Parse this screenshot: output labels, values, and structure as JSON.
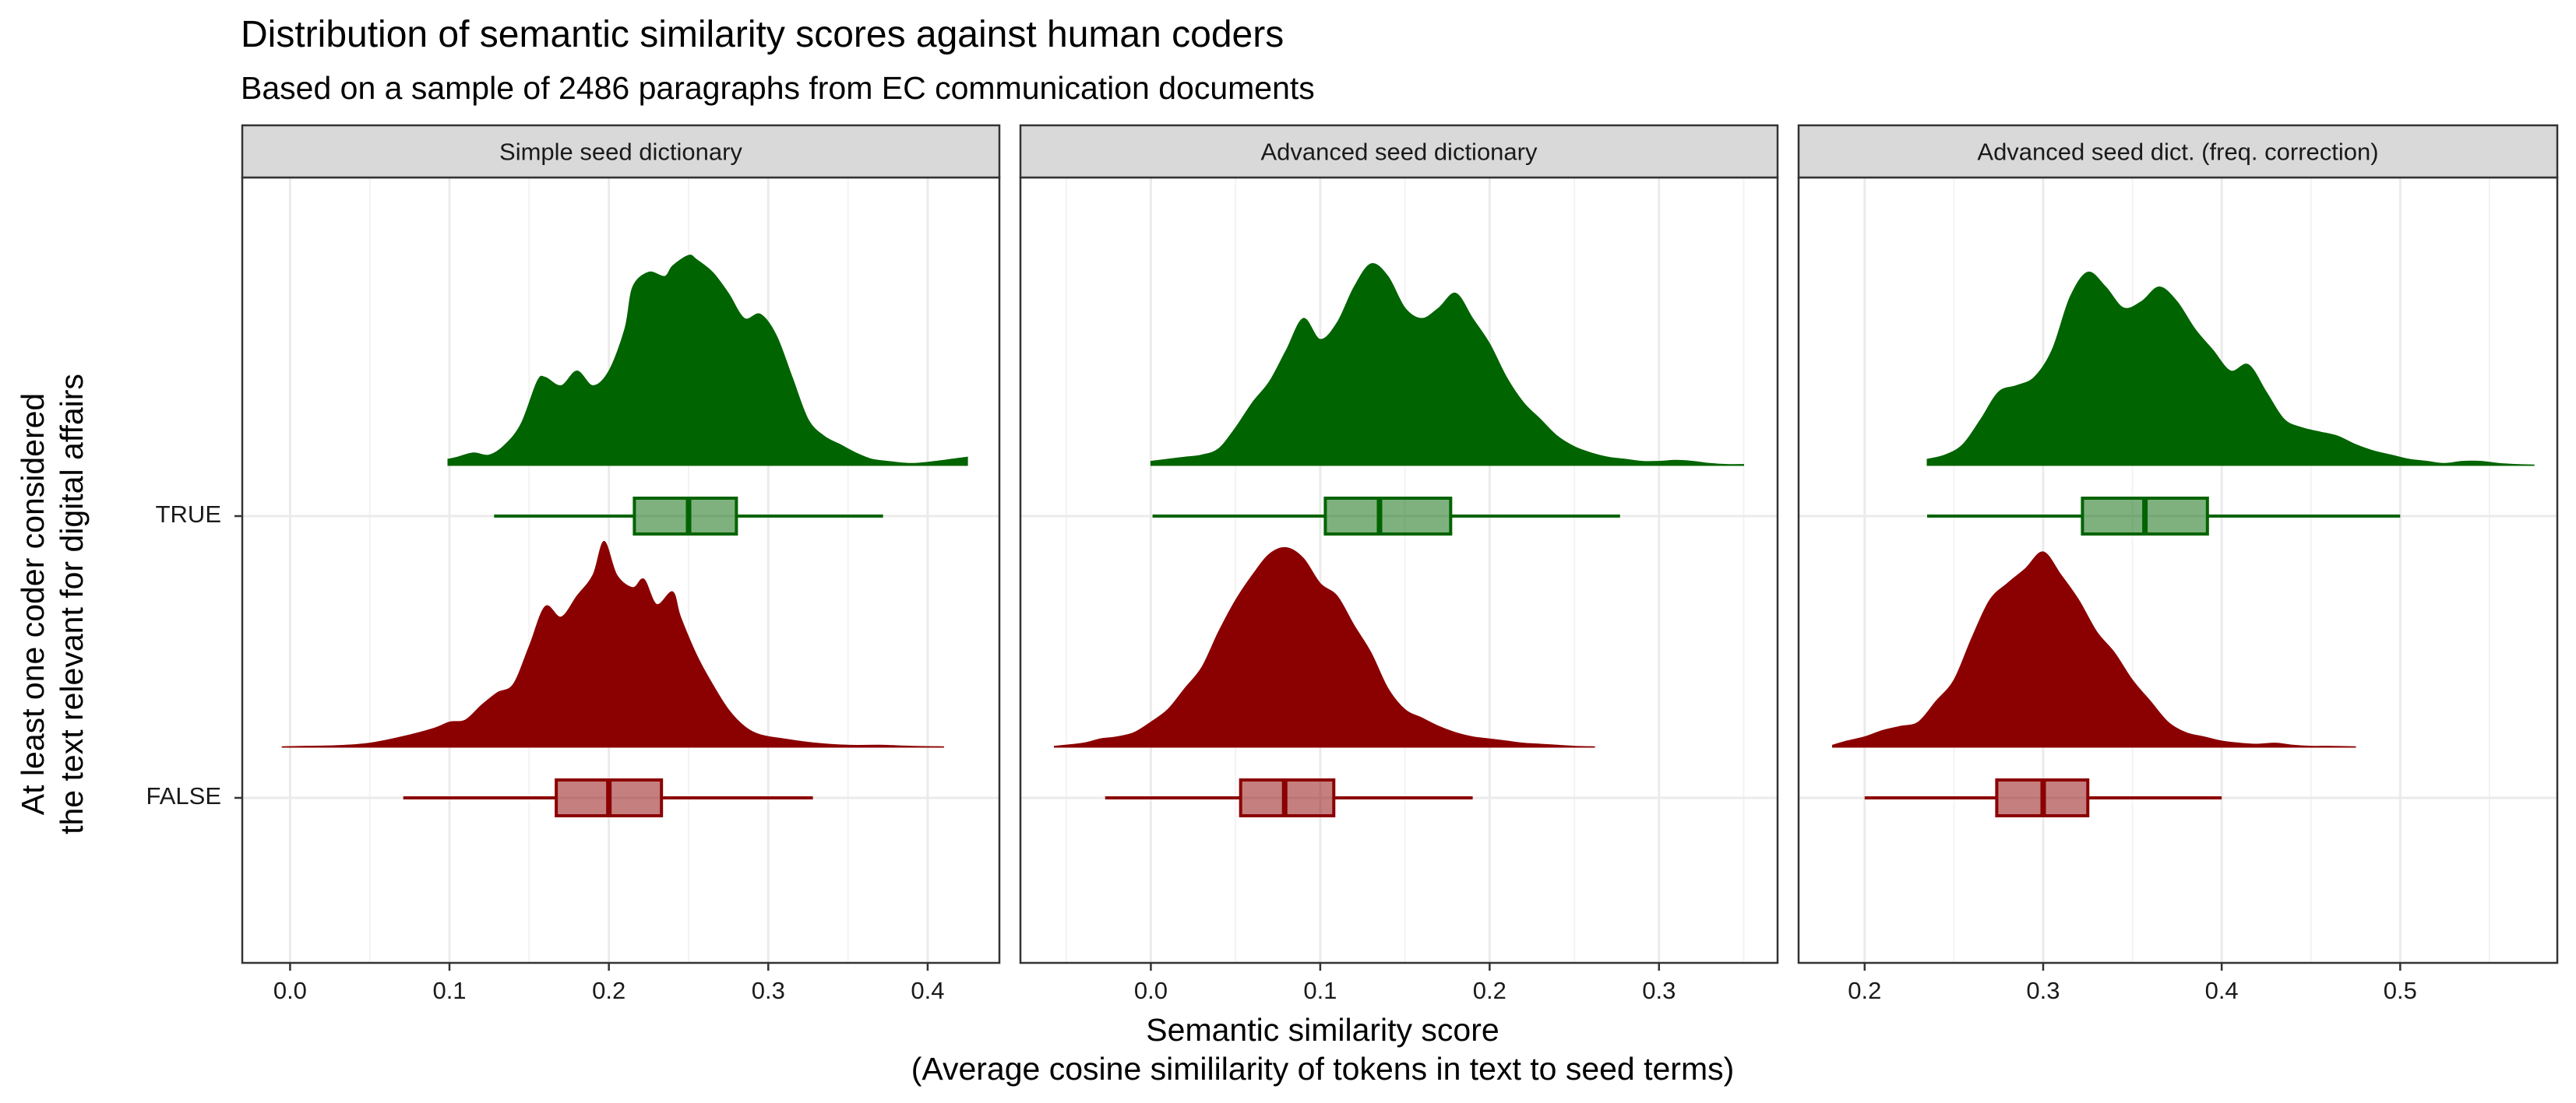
{
  "chart_data": {
    "type": "density-boxplot (raincloud)",
    "title": "Distribution of semantic similarity scores against human coders",
    "subtitle": "Based on a sample of 2486 paragraphs from EC communication documents",
    "xlabel": "Semantic similarity score",
    "xlabel_line2": "(Average cosine simililarity of tokens in text to seed terms)",
    "ylabel": "At least one coder considered",
    "ylabel_line2": "the text relevant for digital affairs",
    "categories": [
      "TRUE",
      "FALSE"
    ],
    "colors": {
      "TRUE": "#006400",
      "FALSE": "#8b0000"
    },
    "grid": true,
    "legend": "none",
    "panels": [
      {
        "label": "Simple seed dictionary",
        "xlim": [
          -0.03,
          0.445
        ],
        "xticks": [
          0.0,
          0.1,
          0.2,
          0.3,
          0.4
        ],
        "xtick_labels": [
          "0.0",
          "0.1",
          "0.2",
          "0.3",
          "0.4"
        ],
        "groups": [
          {
            "name": "TRUE",
            "box": {
              "min": 0.128,
              "q1": 0.216,
              "median": 0.25,
              "q3": 0.28,
              "max": 0.372
            },
            "density": [
              [
                0.099,
                0.03
              ],
              [
                0.105,
                0.04
              ],
              [
                0.115,
                0.06
              ],
              [
                0.125,
                0.05
              ],
              [
                0.135,
                0.1
              ],
              [
                0.145,
                0.2
              ],
              [
                0.155,
                0.4
              ],
              [
                0.16,
                0.42
              ],
              [
                0.17,
                0.38
              ],
              [
                0.18,
                0.45
              ],
              [
                0.19,
                0.38
              ],
              [
                0.2,
                0.45
              ],
              [
                0.21,
                0.65
              ],
              [
                0.215,
                0.85
              ],
              [
                0.225,
                0.92
              ],
              [
                0.235,
                0.9
              ],
              [
                0.24,
                0.95
              ],
              [
                0.25,
                1.0
              ],
              [
                0.255,
                0.98
              ],
              [
                0.265,
                0.92
              ],
              [
                0.275,
                0.82
              ],
              [
                0.285,
                0.7
              ],
              [
                0.295,
                0.72
              ],
              [
                0.305,
                0.62
              ],
              [
                0.315,
                0.42
              ],
              [
                0.325,
                0.22
              ],
              [
                0.335,
                0.14
              ],
              [
                0.345,
                0.1
              ],
              [
                0.355,
                0.06
              ],
              [
                0.365,
                0.03
              ],
              [
                0.375,
                0.02
              ],
              [
                0.39,
                0.01
              ],
              [
                0.405,
                0.02
              ],
              [
                0.415,
                0.03
              ],
              [
                0.425,
                0.04
              ]
            ]
          },
          {
            "name": "FALSE",
            "box": {
              "min": 0.071,
              "q1": 0.167,
              "median": 0.2,
              "q3": 0.233,
              "max": 0.328
            },
            "density": [
              [
                -0.005,
                0.003
              ],
              [
                0.01,
                0.005
              ],
              [
                0.03,
                0.008
              ],
              [
                0.05,
                0.02
              ],
              [
                0.07,
                0.05
              ],
              [
                0.09,
                0.09
              ],
              [
                0.1,
                0.12
              ],
              [
                0.11,
                0.13
              ],
              [
                0.12,
                0.2
              ],
              [
                0.13,
                0.26
              ],
              [
                0.14,
                0.3
              ],
              [
                0.15,
                0.48
              ],
              [
                0.16,
                0.67
              ],
              [
                0.17,
                0.62
              ],
              [
                0.18,
                0.72
              ],
              [
                0.19,
                0.82
              ],
              [
                0.197,
                0.98
              ],
              [
                0.205,
                0.82
              ],
              [
                0.215,
                0.76
              ],
              [
                0.222,
                0.8
              ],
              [
                0.23,
                0.68
              ],
              [
                0.24,
                0.74
              ],
              [
                0.245,
                0.62
              ],
              [
                0.255,
                0.44
              ],
              [
                0.265,
                0.3
              ],
              [
                0.275,
                0.18
              ],
              [
                0.285,
                0.1
              ],
              [
                0.295,
                0.06
              ],
              [
                0.31,
                0.04
              ],
              [
                0.33,
                0.02
              ],
              [
                0.35,
                0.01
              ],
              [
                0.37,
                0.01
              ],
              [
                0.39,
                0.005
              ],
              [
                0.41,
                0.003
              ]
            ]
          }
        ]
      },
      {
        "label": "Advanced seed dictionary",
        "xlim": [
          -0.077,
          0.37
        ],
        "xticks": [
          0.0,
          0.1,
          0.2,
          0.3
        ],
        "xtick_labels": [
          "0.0",
          "0.1",
          "0.2",
          "0.3"
        ],
        "groups": [
          {
            "name": "TRUE",
            "box": {
              "min": 0.001,
              "q1": 0.103,
              "median": 0.135,
              "q3": 0.177,
              "max": 0.277
            },
            "density": [
              [
                0.0,
                0.02
              ],
              [
                0.01,
                0.03
              ],
              [
                0.02,
                0.04
              ],
              [
                0.03,
                0.05
              ],
              [
                0.04,
                0.08
              ],
              [
                0.05,
                0.18
              ],
              [
                0.06,
                0.3
              ],
              [
                0.07,
                0.4
              ],
              [
                0.08,
                0.55
              ],
              [
                0.09,
                0.7
              ],
              [
                0.1,
                0.6
              ],
              [
                0.11,
                0.68
              ],
              [
                0.12,
                0.85
              ],
              [
                0.13,
                0.96
              ],
              [
                0.14,
                0.9
              ],
              [
                0.15,
                0.75
              ],
              [
                0.16,
                0.7
              ],
              [
                0.17,
                0.75
              ],
              [
                0.18,
                0.82
              ],
              [
                0.19,
                0.7
              ],
              [
                0.2,
                0.58
              ],
              [
                0.21,
                0.42
              ],
              [
                0.22,
                0.3
              ],
              [
                0.23,
                0.22
              ],
              [
                0.24,
                0.14
              ],
              [
                0.25,
                0.09
              ],
              [
                0.26,
                0.06
              ],
              [
                0.27,
                0.04
              ],
              [
                0.28,
                0.03
              ],
              [
                0.29,
                0.02
              ],
              [
                0.3,
                0.02
              ],
              [
                0.31,
                0.025
              ],
              [
                0.32,
                0.02
              ],
              [
                0.33,
                0.01
              ],
              [
                0.34,
                0.005
              ],
              [
                0.35,
                0.005
              ]
            ]
          },
          {
            "name": "FALSE",
            "box": {
              "min": -0.027,
              "q1": 0.053,
              "median": 0.079,
              "q3": 0.108,
              "max": 0.19
            },
            "density": [
              [
                -0.057,
                0.005
              ],
              [
                -0.04,
                0.02
              ],
              [
                -0.03,
                0.04
              ],
              [
                -0.02,
                0.05
              ],
              [
                -0.01,
                0.07
              ],
              [
                0.0,
                0.12
              ],
              [
                0.01,
                0.18
              ],
              [
                0.02,
                0.28
              ],
              [
                0.03,
                0.38
              ],
              [
                0.04,
                0.55
              ],
              [
                0.05,
                0.7
              ],
              [
                0.06,
                0.82
              ],
              [
                0.07,
                0.92
              ],
              [
                0.08,
                0.95
              ],
              [
                0.09,
                0.9
              ],
              [
                0.1,
                0.78
              ],
              [
                0.11,
                0.72
              ],
              [
                0.12,
                0.58
              ],
              [
                0.13,
                0.45
              ],
              [
                0.14,
                0.28
              ],
              [
                0.15,
                0.18
              ],
              [
                0.16,
                0.14
              ],
              [
                0.17,
                0.1
              ],
              [
                0.18,
                0.07
              ],
              [
                0.19,
                0.05
              ],
              [
                0.2,
                0.04
              ],
              [
                0.21,
                0.03
              ],
              [
                0.22,
                0.02
              ],
              [
                0.23,
                0.015
              ],
              [
                0.24,
                0.01
              ],
              [
                0.25,
                0.005
              ],
              [
                0.262,
                0.003
              ]
            ]
          }
        ]
      },
      {
        "label": "Advanced seed dict. (freq. correction)",
        "xlim": [
          0.163,
          0.588
        ],
        "xticks": [
          0.2,
          0.3,
          0.4,
          0.5
        ],
        "xtick_labels": [
          "0.2",
          "0.3",
          "0.4",
          "0.5"
        ],
        "groups": [
          {
            "name": "TRUE",
            "box": {
              "min": 0.235,
              "q1": 0.322,
              "median": 0.357,
              "q3": 0.392,
              "max": 0.5
            },
            "density": [
              [
                0.235,
                0.03
              ],
              [
                0.245,
                0.05
              ],
              [
                0.255,
                0.1
              ],
              [
                0.265,
                0.22
              ],
              [
                0.275,
                0.35
              ],
              [
                0.285,
                0.38
              ],
              [
                0.295,
                0.42
              ],
              [
                0.305,
                0.55
              ],
              [
                0.315,
                0.8
              ],
              [
                0.325,
                0.92
              ],
              [
                0.335,
                0.85
              ],
              [
                0.345,
                0.75
              ],
              [
                0.355,
                0.78
              ],
              [
                0.365,
                0.85
              ],
              [
                0.375,
                0.78
              ],
              [
                0.385,
                0.65
              ],
              [
                0.395,
                0.55
              ],
              [
                0.405,
                0.45
              ],
              [
                0.415,
                0.48
              ],
              [
                0.425,
                0.35
              ],
              [
                0.435,
                0.22
              ],
              [
                0.445,
                0.18
              ],
              [
                0.455,
                0.16
              ],
              [
                0.465,
                0.14
              ],
              [
                0.475,
                0.1
              ],
              [
                0.485,
                0.07
              ],
              [
                0.495,
                0.05
              ],
              [
                0.505,
                0.03
              ],
              [
                0.515,
                0.02
              ],
              [
                0.525,
                0.01
              ],
              [
                0.535,
                0.02
              ],
              [
                0.545,
                0.02
              ],
              [
                0.555,
                0.01
              ],
              [
                0.565,
                0.005
              ],
              [
                0.575,
                0.003
              ]
            ]
          },
          {
            "name": "FALSE",
            "box": {
              "min": 0.2,
              "q1": 0.274,
              "median": 0.3,
              "q3": 0.325,
              "max": 0.4
            },
            "density": [
              [
                0.182,
                0.01
              ],
              [
                0.19,
                0.03
              ],
              [
                0.2,
                0.05
              ],
              [
                0.21,
                0.08
              ],
              [
                0.22,
                0.1
              ],
              [
                0.23,
                0.12
              ],
              [
                0.24,
                0.22
              ],
              [
                0.25,
                0.32
              ],
              [
                0.26,
                0.52
              ],
              [
                0.27,
                0.7
              ],
              [
                0.28,
                0.78
              ],
              [
                0.29,
                0.85
              ],
              [
                0.3,
                0.93
              ],
              [
                0.31,
                0.82
              ],
              [
                0.32,
                0.7
              ],
              [
                0.33,
                0.55
              ],
              [
                0.34,
                0.45
              ],
              [
                0.35,
                0.32
              ],
              [
                0.36,
                0.22
              ],
              [
                0.37,
                0.12
              ],
              [
                0.38,
                0.07
              ],
              [
                0.39,
                0.05
              ],
              [
                0.4,
                0.03
              ],
              [
                0.41,
                0.02
              ],
              [
                0.42,
                0.015
              ],
              [
                0.43,
                0.02
              ],
              [
                0.44,
                0.01
              ],
              [
                0.45,
                0.005
              ],
              [
                0.46,
                0.005
              ],
              [
                0.475,
                0.003
              ]
            ]
          }
        ]
      }
    ]
  }
}
